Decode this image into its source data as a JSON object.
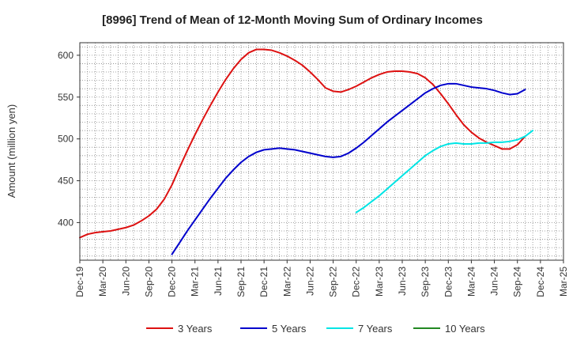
{
  "chart_data": {
    "type": "line",
    "title": "[8996]  Trend of Mean of 12-Month Moving Sum of Ordinary Incomes",
    "xlabel": "",
    "ylabel": "Amount (million yen)",
    "ylim": [
      355,
      615
    ],
    "yticks": [
      400,
      450,
      500,
      550,
      600
    ],
    "xticks": [
      "Dec-19",
      "Mar-20",
      "Jun-20",
      "Sep-20",
      "Dec-20",
      "Mar-21",
      "Jun-21",
      "Sep-21",
      "Dec-21",
      "Mar-22",
      "Jun-22",
      "Sep-22",
      "Dec-22",
      "Mar-23",
      "Jun-23",
      "Sep-23",
      "Dec-23",
      "Mar-24",
      "Jun-24",
      "Sep-24",
      "Dec-24",
      "Mar-25"
    ],
    "grid": true,
    "legend_position": "bottom",
    "series": [
      {
        "name": "3 Years",
        "color": "#dd1111",
        "start_index": 0,
        "values": [
          382,
          386,
          388,
          389,
          390,
          392,
          394,
          397,
          402,
          408,
          416,
          428,
          445,
          466,
          486,
          505,
          523,
          540,
          556,
          571,
          584,
          595,
          603,
          607,
          607,
          606,
          603,
          599,
          594,
          588,
          580,
          571,
          561,
          557,
          556,
          559,
          563,
          568,
          573,
          577,
          580,
          581,
          581,
          580,
          578,
          573,
          565,
          554,
          542,
          529,
          517,
          508,
          501,
          496,
          492,
          488,
          488,
          493,
          503
        ]
      },
      {
        "name": "5 Years",
        "color": "#0000cc",
        "start_index": 12,
        "values": [
          362,
          376,
          390,
          403,
          416,
          429,
          441,
          453,
          463,
          472,
          479,
          484,
          487,
          488,
          489,
          488,
          487,
          485,
          483,
          481,
          479,
          478,
          479,
          483,
          489,
          496,
          504,
          512,
          520,
          527,
          534,
          541,
          548,
          555,
          560,
          564,
          566,
          566,
          564,
          562,
          561,
          560,
          558,
          555,
          553,
          554,
          559
        ]
      },
      {
        "name": "7 Years",
        "color": "#00e5e5",
        "start_index": 36,
        "values": [
          412,
          418,
          425,
          432,
          440,
          448,
          456,
          464,
          472,
          480,
          486,
          491,
          494,
          495,
          494,
          494,
          495,
          495,
          496,
          496,
          497,
          499,
          503,
          510
        ]
      },
      {
        "name": "10 Years",
        "color": "#228822",
        "start_index": 0,
        "values": []
      }
    ]
  }
}
